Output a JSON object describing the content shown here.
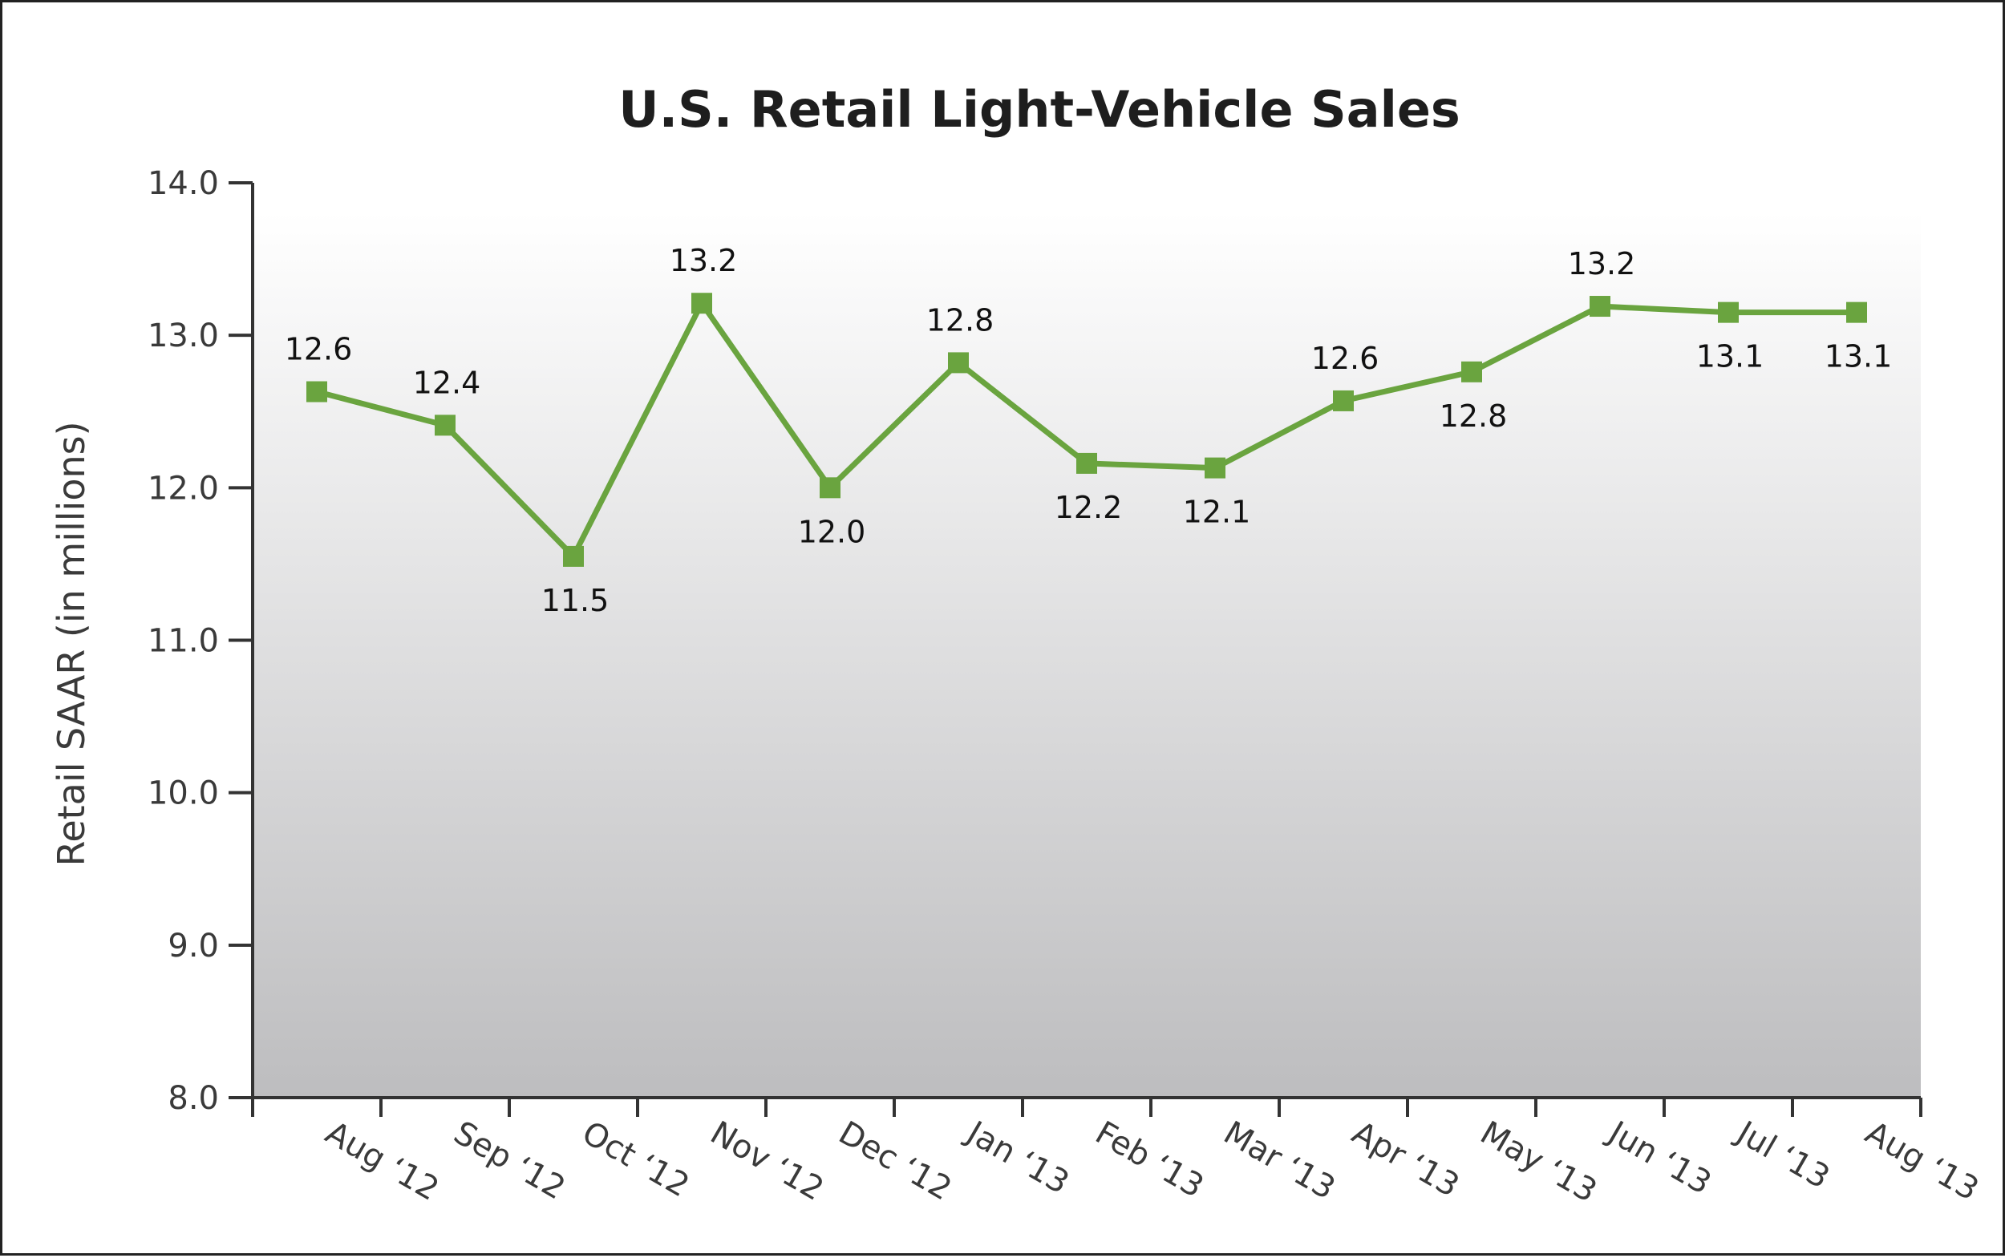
{
  "chart_data": {
    "type": "line",
    "title": "U.S. Retail Light-Vehicle Sales",
    "xlabel": "",
    "ylabel": "Retail SAAR (in millions)",
    "ylim": [
      8.0,
      14.0
    ],
    "yticks": [
      "8.0",
      "9.0",
      "10.0",
      "11.0",
      "12.0",
      "13.0",
      "14.0"
    ],
    "categories": [
      "Aug ‘12",
      "Sep ‘12",
      "Oct ‘12",
      "Nov ‘12",
      "Dec ‘12",
      "Jan ‘13",
      "Feb ‘13",
      "Mar ‘13",
      "Apr ‘13",
      "May ‘13",
      "Jun ‘13",
      "Jul ‘13",
      "Aug ‘13"
    ],
    "series": [
      {
        "values": [
          12.63,
          12.41,
          11.55,
          13.21,
          12.0,
          12.82,
          12.16,
          12.13,
          12.57,
          12.76,
          13.19,
          13.15,
          13.15
        ],
        "labels": [
          "12.6",
          "12.4",
          "11.5",
          "13.2",
          "12.0",
          "12.8",
          "12.2",
          "12.1",
          "12.6",
          "12.8",
          "13.2",
          "13.1",
          "13.1"
        ],
        "label_positions": [
          "above",
          "above",
          "below",
          "above",
          "below",
          "above",
          "below",
          "below",
          "above",
          "below",
          "above",
          "below",
          "below"
        ]
      }
    ],
    "grid": false,
    "background": "vertical gradient white to gray",
    "colors": {
      "line": "#6aa43f",
      "marker": "#6aa43f"
    }
  }
}
